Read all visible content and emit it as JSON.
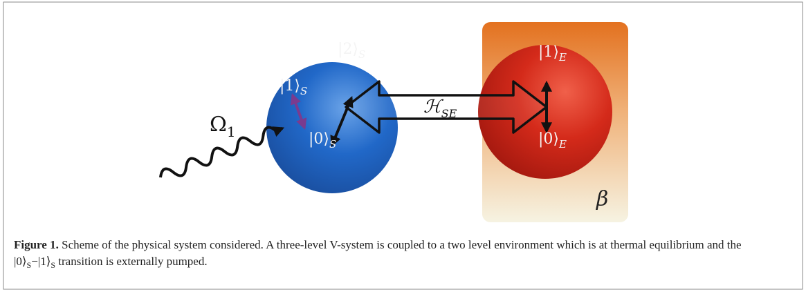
{
  "figure": {
    "kets": {
      "s2": {
        "ket": "|2⟩",
        "sub": "S"
      },
      "s1": {
        "ket": "|1⟩",
        "sub": "S"
      },
      "s0": {
        "ket": "|0⟩",
        "sub": "S"
      },
      "e1": {
        "ket": "|1⟩",
        "sub": "E"
      },
      "e0": {
        "ket": "|0⟩",
        "sub": "E"
      }
    },
    "omega": {
      "symbol": "Ω",
      "sub": "1"
    },
    "coupling": {
      "symbol": "ℋ",
      "sub": "SE"
    },
    "beta": "β"
  },
  "caption": {
    "label": "Figure 1.",
    "parts": [
      "Scheme of the physical system considered. A three-level V-system is coupled to a two level environment which is at thermal equilibrium and the ",
      "|0⟩",
      "S",
      "−|1⟩",
      "S",
      " transition is externally pumped."
    ]
  }
}
